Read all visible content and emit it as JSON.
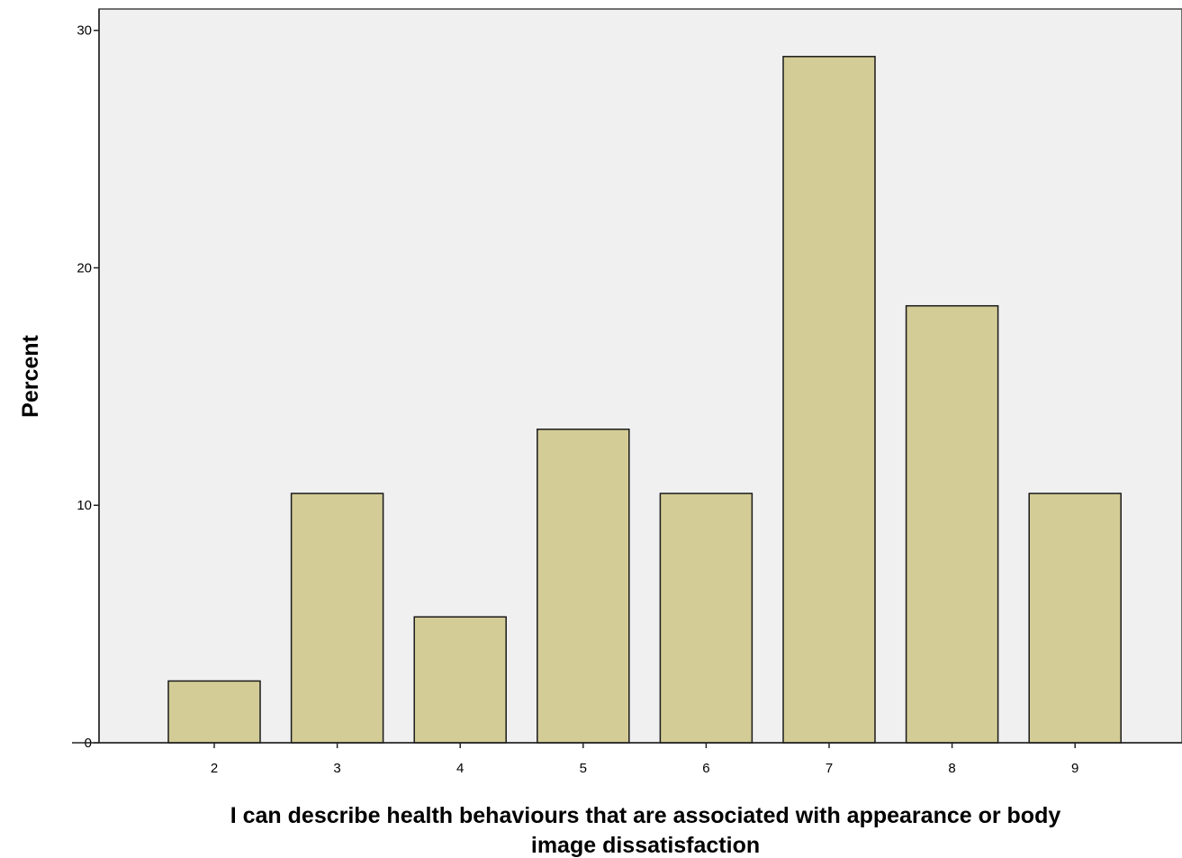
{
  "chart_data": {
    "type": "bar",
    "title": "",
    "xlabel": "I can describe health behaviours that are associated with appearance or body image dissatisfaction",
    "xlabel_lines": [
      "I can describe health behaviours that are associated with appearance or body",
      "image dissatisfaction"
    ],
    "ylabel": "Percent",
    "categories": [
      "2",
      "3",
      "4",
      "5",
      "6",
      "7",
      "8",
      "9"
    ],
    "values": [
      2.6,
      10.5,
      5.3,
      13.2,
      10.5,
      28.9,
      18.4,
      10.5
    ],
    "ylim": [
      0,
      30.9
    ],
    "yticks": [
      0,
      10,
      20,
      30
    ],
    "ytick_labels": [
      "0",
      "10",
      "20",
      "30"
    ],
    "grid": false,
    "legend": "none",
    "colors": {
      "bar_fill": "#d3cc96",
      "bar_stroke": "#1a1a1a",
      "plot_background": "#f0f0f0",
      "axis": "#222222"
    }
  }
}
